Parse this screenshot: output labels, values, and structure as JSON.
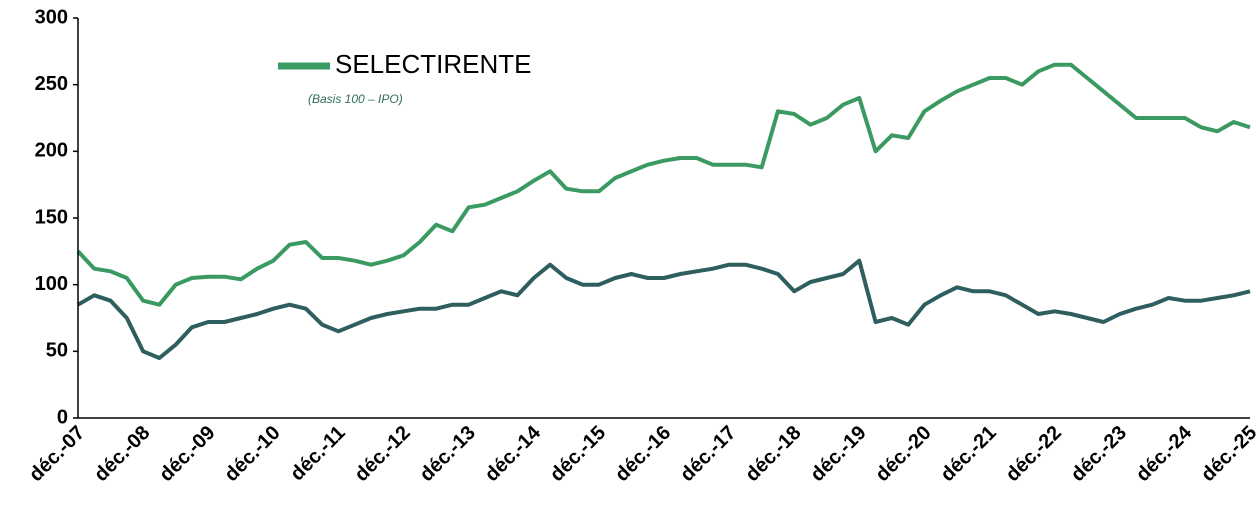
{
  "chart_data": {
    "type": "line",
    "annotation": "(Basis 100 – IPO)",
    "categories": [
      "déc.-07",
      null,
      null,
      null,
      "déc.-08",
      null,
      null,
      null,
      "déc.-09",
      null,
      null,
      null,
      "déc.-10",
      null,
      null,
      null,
      "déc.-11",
      null,
      null,
      null,
      "déc.-12",
      null,
      null,
      null,
      "déc.-13",
      null,
      null,
      null,
      "déc.-14",
      null,
      null,
      null,
      "déc.-15",
      null,
      null,
      null,
      "déc.-16",
      null,
      null,
      null,
      "déc.-17",
      null,
      null,
      null,
      "déc.-18",
      null,
      null,
      null,
      "déc.-19",
      null,
      null,
      null,
      "déc.-20",
      null,
      null,
      null,
      "déc.-21",
      null,
      null,
      null,
      "déc.-22",
      null,
      null,
      null,
      "déc.-23",
      null,
      null,
      null,
      "déc.-24",
      null,
      null,
      null,
      "déc.-25"
    ],
    "series": [
      {
        "name": "SELECTIRENTE",
        "color": "#3a9a62",
        "values": [
          125,
          112,
          110,
          105,
          88,
          85,
          100,
          105,
          106,
          106,
          104,
          112,
          118,
          130,
          132,
          120,
          120,
          118,
          115,
          118,
          122,
          132,
          145,
          140,
          158,
          160,
          165,
          170,
          178,
          185,
          172,
          170,
          170,
          180,
          185,
          190,
          193,
          195,
          195,
          190,
          190,
          190,
          188,
          230,
          228,
          220,
          225,
          235,
          240,
          200,
          212,
          210,
          230,
          238,
          245,
          250,
          255,
          255,
          250,
          260,
          265,
          265,
          255,
          245,
          235,
          225,
          225,
          225,
          225,
          218,
          215,
          222,
          218
        ]
      },
      {
        "color": "#2e5e5e",
        "values": [
          85,
          92,
          88,
          75,
          50,
          45,
          55,
          68,
          72,
          72,
          75,
          78,
          82,
          85,
          82,
          70,
          65,
          70,
          75,
          78,
          80,
          82,
          82,
          85,
          85,
          90,
          95,
          92,
          105,
          115,
          105,
          100,
          100,
          105,
          108,
          105,
          105,
          108,
          110,
          112,
          115,
          115,
          112,
          108,
          95,
          102,
          105,
          108,
          118,
          72,
          75,
          70,
          85,
          92,
          98,
          95,
          95,
          92,
          85,
          78,
          80,
          78,
          75,
          72,
          78,
          82,
          85,
          90,
          88,
          88,
          90,
          92,
          95
        ]
      }
    ],
    "ylim": [
      0,
      300
    ],
    "yticks": [
      0,
      50,
      100,
      150,
      200,
      250,
      300
    ]
  }
}
